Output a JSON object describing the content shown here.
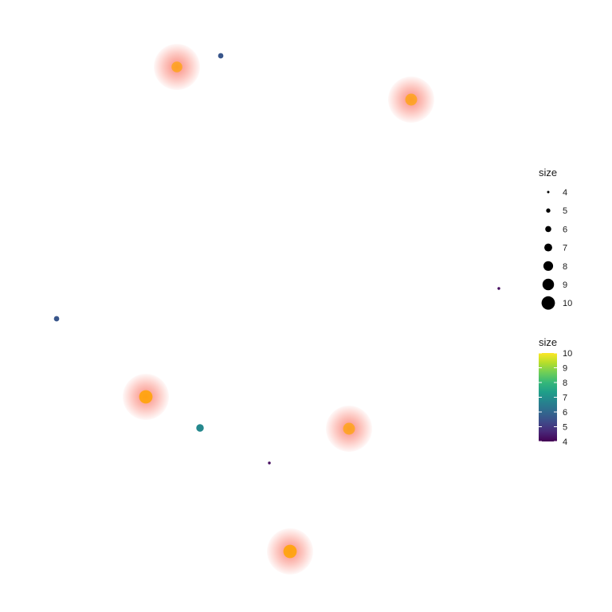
{
  "chart_data": {
    "type": "scatter",
    "title": "",
    "xlabel": "",
    "ylabel": "",
    "grid": false,
    "axes_visible": false,
    "points": [
      {
        "size": 8.6,
        "glow": true
      },
      {
        "size": 5.6,
        "glow": false
      },
      {
        "size": 9.2,
        "glow": true
      },
      {
        "size": 4.2,
        "glow": false
      },
      {
        "size": 5.6,
        "glow": false
      },
      {
        "size": 10.0,
        "glow": true
      },
      {
        "size": 6.8,
        "glow": false
      },
      {
        "size": 9.2,
        "glow": true
      },
      {
        "size": 4.2,
        "glow": false
      },
      {
        "size": 10.0,
        "glow": true
      }
    ],
    "glow_color": "#fa8072",
    "size_legend": {
      "title": "size",
      "position": "right",
      "breaks": [
        4,
        5,
        6,
        7,
        8,
        9,
        10
      ],
      "labels": [
        "4",
        "5",
        "6",
        "7",
        "8",
        "9",
        "10"
      ]
    },
    "color_legend": {
      "title": "size",
      "position": "right",
      "colormap": "viridis",
      "range": [
        4,
        10
      ],
      "labels": [
        "4",
        "5",
        "6",
        "7",
        "8",
        "9",
        "10"
      ]
    }
  }
}
